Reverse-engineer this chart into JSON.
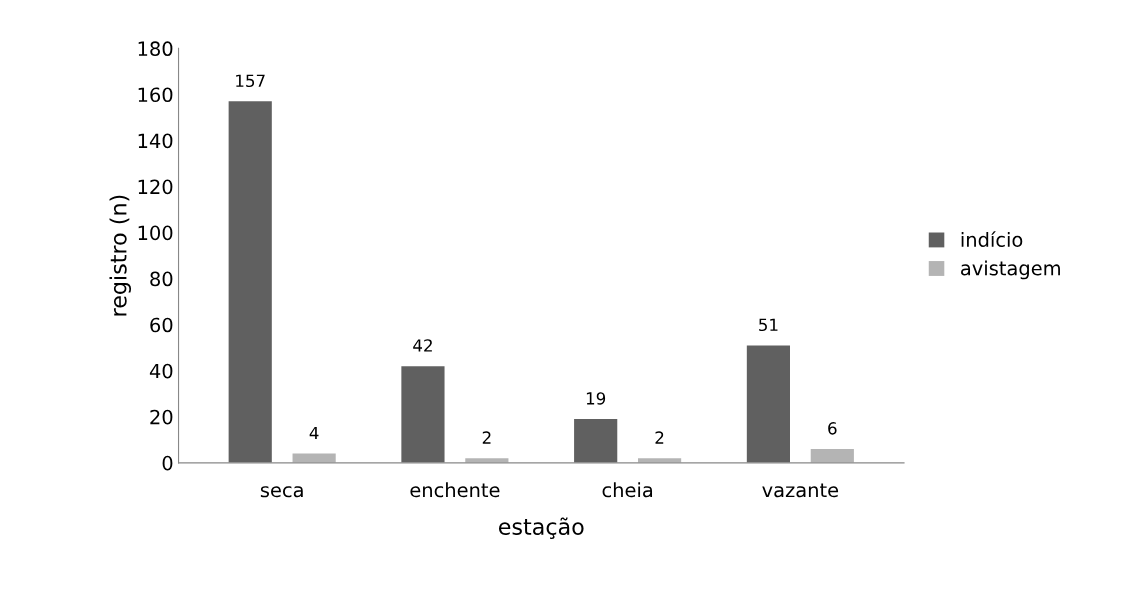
{
  "chart_data": {
    "type": "bar",
    "xlabel": "estação",
    "ylabel": "registro (n)",
    "categories": [
      "seca",
      "enchente",
      "cheia",
      "vazante"
    ],
    "series": [
      {
        "name": "indício",
        "color": "#606060",
        "values": [
          157,
          42,
          19,
          51
        ]
      },
      {
        "name": "avistagem",
        "color": "#b4b4b4",
        "values": [
          4,
          2,
          2,
          6
        ]
      }
    ],
    "ylim": [
      0,
      180
    ],
    "yticks": [
      0,
      20,
      40,
      60,
      80,
      100,
      120,
      140,
      160,
      180
    ],
    "data_labels": true,
    "grid": false,
    "legend": "right"
  }
}
